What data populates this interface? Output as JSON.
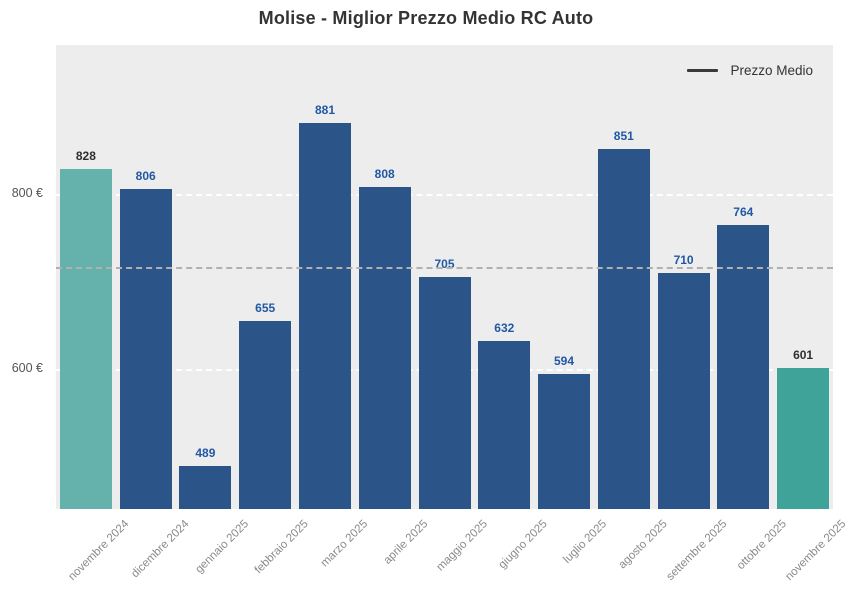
{
  "title": "Molise - Miglior Prezzo Medio RC Auto",
  "legend": {
    "label": "Prezzo Medio",
    "line_color": "#3a3a3a"
  },
  "colors": {
    "plot_background": "#ededed",
    "page_background": "#ffffff",
    "bar_default": "#2b5488",
    "bar_first_highlight": "#65b2ac",
    "bar_last_highlight": "#3fa39a",
    "value_label_default": "#2257a4",
    "value_label_highlight": "#2e2e2e",
    "gridline": "#ffffff",
    "average_line": "#b0b0b0",
    "y_tick_color": "#555555",
    "x_tick_color": "#8a8a8a",
    "title_color": "#333333"
  },
  "chart_data": {
    "type": "bar",
    "title": "Molise - Miglior Prezzo Medio RC Auto",
    "xlabel": "",
    "ylabel": "",
    "unit": "€",
    "categories": [
      "novembre 2024",
      "dicembre 2024",
      "gennaio 2025",
      "febbraio 2025",
      "marzo 2025",
      "aprile 2025",
      "maggio 2025",
      "giugno 2025",
      "luglio 2025",
      "agosto 2025",
      "settembre 2025",
      "ottobre 2025",
      "novembre 2025"
    ],
    "series": [
      {
        "name": "Prezzo Medio",
        "values": [
          828,
          806,
          489,
          655,
          881,
          808,
          705,
          632,
          594,
          851,
          710,
          764,
          601
        ]
      }
    ],
    "value_labels": [
      "828",
      "806",
      "489",
      "655",
      "881",
      "808",
      "705",
      "632",
      "594",
      "851",
      "710",
      "764",
      "601"
    ],
    "bar_colors": [
      "#65b2ac",
      "#2b5488",
      "#2b5488",
      "#2b5488",
      "#2b5488",
      "#2b5488",
      "#2b5488",
      "#2b5488",
      "#2b5488",
      "#2b5488",
      "#2b5488",
      "#2b5488",
      "#3fa39a"
    ],
    "value_label_colors": [
      "#2e2e2e",
      "#2257a4",
      "#2257a4",
      "#2257a4",
      "#2257a4",
      "#2257a4",
      "#2257a4",
      "#2257a4",
      "#2257a4",
      "#2257a4",
      "#2257a4",
      "#2257a4",
      "#2e2e2e"
    ],
    "ylim": [
      440,
      970
    ],
    "y_ticks": [
      {
        "value": 600,
        "label": "600 €"
      },
      {
        "value": 800,
        "label": "800 €"
      }
    ],
    "grid": "horizontal-dashed-white",
    "average_line_value": 717,
    "legend_position": "top-right-inside"
  }
}
